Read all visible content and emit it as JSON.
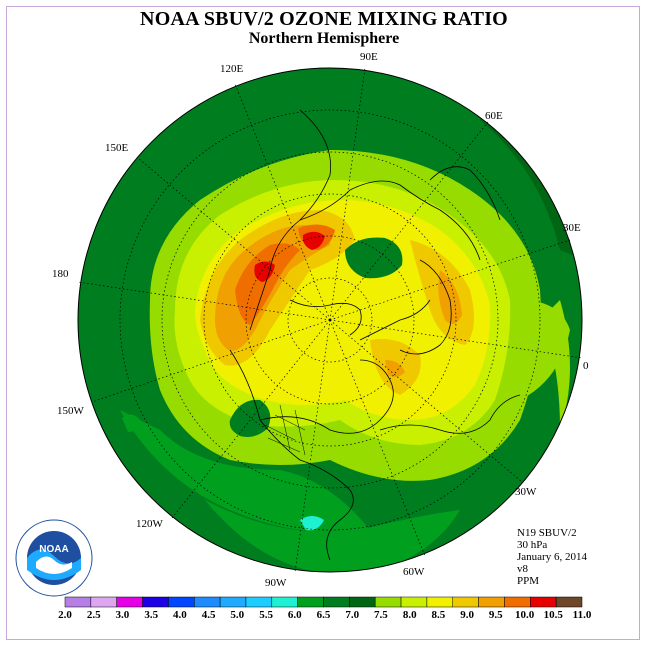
{
  "title": "NOAA SBUV/2 OZONE MIXING RATIO",
  "subtitle": "Northern Hemisphere",
  "longitude_labels": {
    "lon_90e": "90E",
    "lon_120e": "120E",
    "lon_60e": "60E",
    "lon_150e": "150E",
    "lon_30e": "30E",
    "lon_180": "180",
    "lon_0": "0",
    "lon_150w": "150W",
    "lon_30w": "30W",
    "lon_120w": "120W",
    "lon_60w": "60W",
    "lon_90w": "90W"
  },
  "info": {
    "instrument": "N19 SBUV/2",
    "pressure": "30 hPa",
    "date": "January 6, 2014",
    "version": "v8",
    "units": "PPM"
  },
  "colorbar": {
    "ticks": [
      "2.0",
      "2.5",
      "3.0",
      "3.5",
      "4.0",
      "4.5",
      "5.0",
      "5.5",
      "6.0",
      "6.5",
      "7.0",
      "7.5",
      "8.0",
      "8.5",
      "9.0",
      "9.5",
      "10.0",
      "10.5",
      "11.0"
    ],
    "colors": [
      "#b57fe6",
      "#dca6f0",
      "#e600e6",
      "#1e00e6",
      "#0046ff",
      "#1e8cff",
      "#1eaaff",
      "#1ecdff",
      "#1ef0d2",
      "#00a01e",
      "#007d1e",
      "#006614",
      "#96dc00",
      "#c8f000",
      "#f0f000",
      "#f0c800",
      "#f0a000",
      "#f06e00",
      "#e60000",
      "#6e4628"
    ]
  },
  "logo_text": "NOAA"
}
